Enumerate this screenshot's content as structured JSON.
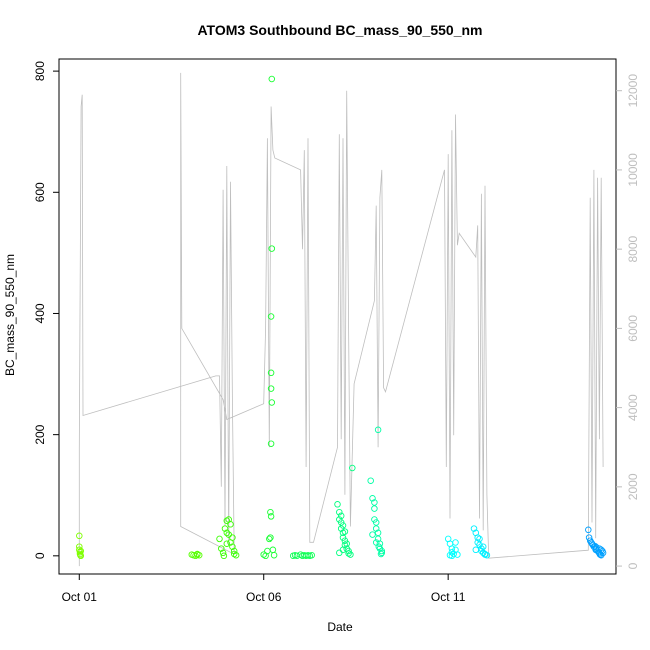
{
  "chart_data": {
    "type": "scatter",
    "title": "ATOM3 Southbound BC_mass_90_550_nm",
    "xlabel": "Date",
    "ylabel": "BC_mass_90_550_nm",
    "x_ticks": [
      "Oct 01",
      "Oct 06",
      "Oct 11"
    ],
    "x_tick_days": [
      1,
      6,
      11
    ],
    "xlim_days": [
      0.45,
      15.55
    ],
    "ylim": [
      -30,
      820
    ],
    "y_ticks": [
      0,
      200,
      400,
      600,
      800
    ],
    "y2lim": [
      -200,
      12800
    ],
    "y2_ticks": [
      0,
      2000,
      4000,
      6000,
      8000,
      10000,
      12000
    ],
    "y2_series_color": "#bebebe",
    "grid": false,
    "legend": "none",
    "series": [
      {
        "color": "#7fff00",
        "points": [
          [
            1.0,
            33
          ],
          [
            1.0,
            15
          ],
          [
            1.0,
            10
          ],
          [
            1.02,
            6
          ],
          [
            1.02,
            3
          ],
          [
            1.03,
            1
          ],
          [
            1.04,
            8
          ],
          [
            1.04,
            0
          ]
        ]
      },
      {
        "color": "#55ff00",
        "points": [
          [
            4.05,
            2
          ],
          [
            4.1,
            1
          ],
          [
            4.15,
            0
          ],
          [
            4.2,
            3
          ],
          [
            4.25,
            1
          ],
          [
            4.2,
            2
          ]
        ]
      },
      {
        "color": "#3cff05",
        "points": [
          [
            4.8,
            28
          ],
          [
            4.85,
            12
          ],
          [
            4.9,
            5
          ],
          [
            4.95,
            45
          ],
          [
            5.0,
            38
          ],
          [
            5.0,
            58
          ],
          [
            5.05,
            60
          ],
          [
            5.1,
            52
          ],
          [
            5.1,
            22
          ],
          [
            5.15,
            15
          ],
          [
            5.15,
            30
          ],
          [
            5.2,
            8
          ],
          [
            5.2,
            3
          ],
          [
            5.25,
            1
          ],
          [
            5.05,
            35
          ],
          [
            5.0,
            20
          ],
          [
            4.92,
            0
          ]
        ]
      },
      {
        "color": "#1aff33",
        "points": [
          [
            6.0,
            2
          ],
          [
            6.05,
            0
          ],
          [
            6.1,
            8
          ],
          [
            6.15,
            28
          ],
          [
            6.18,
            30
          ],
          [
            6.18,
            72
          ],
          [
            6.2,
            65
          ],
          [
            6.2,
            185
          ],
          [
            6.22,
            253
          ],
          [
            6.2,
            276
          ],
          [
            6.2,
            302
          ],
          [
            6.2,
            395
          ],
          [
            6.22,
            507
          ],
          [
            6.22,
            787
          ],
          [
            6.25,
            10
          ],
          [
            6.28,
            1
          ]
        ]
      },
      {
        "color": "#0fff55",
        "points": [
          [
            6.8,
            0
          ],
          [
            6.85,
            1
          ],
          [
            6.9,
            0
          ],
          [
            7.0,
            2
          ],
          [
            7.05,
            0
          ],
          [
            7.1,
            1
          ],
          [
            7.15,
            0
          ],
          [
            7.2,
            1
          ],
          [
            7.25,
            0
          ],
          [
            7.3,
            1
          ]
        ]
      },
      {
        "color": "#00ff7f",
        "points": [
          [
            8.0,
            85
          ],
          [
            8.05,
            72
          ],
          [
            8.05,
            60
          ],
          [
            8.1,
            55
          ],
          [
            8.1,
            45
          ],
          [
            8.15,
            38
          ],
          [
            8.15,
            30
          ],
          [
            8.2,
            25
          ],
          [
            8.2,
            18
          ],
          [
            8.25,
            12
          ],
          [
            8.3,
            8
          ],
          [
            8.3,
            4
          ],
          [
            8.35,
            2
          ],
          [
            8.1,
            66
          ],
          [
            8.15,
            50
          ],
          [
            8.2,
            40
          ],
          [
            8.25,
            20
          ],
          [
            8.15,
            10
          ],
          [
            8.05,
            5
          ],
          [
            8.4,
            145
          ]
        ]
      },
      {
        "color": "#00ffa6",
        "points": [
          [
            8.9,
            124
          ],
          [
            8.95,
            95
          ],
          [
            9.0,
            88
          ],
          [
            9.0,
            78
          ],
          [
            9.05,
            55
          ],
          [
            9.05,
            45
          ],
          [
            9.1,
            38
          ],
          [
            9.1,
            28
          ],
          [
            9.15,
            20
          ],
          [
            9.15,
            12
          ],
          [
            9.2,
            8
          ],
          [
            9.2,
            5
          ],
          [
            9.1,
            208
          ],
          [
            9.0,
            60
          ],
          [
            8.95,
            35
          ],
          [
            9.05,
            22
          ],
          [
            9.12,
            15
          ],
          [
            9.18,
            3
          ]
        ]
      },
      {
        "color": "#00ffff",
        "points": [
          [
            11.0,
            28
          ],
          [
            11.05,
            20
          ],
          [
            11.1,
            12
          ],
          [
            11.1,
            6
          ],
          [
            11.15,
            3
          ],
          [
            11.2,
            22
          ],
          [
            11.2,
            10
          ],
          [
            11.25,
            2
          ],
          [
            11.05,
            1
          ],
          [
            11.1,
            0
          ]
        ]
      },
      {
        "color": "#00f0ff",
        "points": [
          [
            11.7,
            45
          ],
          [
            11.75,
            38
          ],
          [
            11.8,
            30
          ],
          [
            11.8,
            22
          ],
          [
            11.85,
            18
          ],
          [
            11.9,
            12
          ],
          [
            11.9,
            8
          ],
          [
            11.95,
            5
          ],
          [
            12.0,
            3
          ],
          [
            12.0,
            2
          ],
          [
            11.85,
            28
          ],
          [
            11.95,
            15
          ],
          [
            12.05,
            1
          ],
          [
            11.75,
            10
          ]
        ]
      },
      {
        "color": "#00a0ff",
        "points": [
          [
            14.8,
            43
          ],
          [
            14.82,
            30
          ],
          [
            14.85,
            25
          ],
          [
            14.9,
            20
          ],
          [
            14.92,
            18
          ],
          [
            14.95,
            15
          ],
          [
            15.0,
            12
          ],
          [
            15.0,
            10
          ],
          [
            15.05,
            8
          ],
          [
            15.08,
            6
          ],
          [
            15.1,
            4
          ],
          [
            15.12,
            2
          ],
          [
            15.15,
            1
          ],
          [
            14.88,
            22
          ],
          [
            14.98,
            16
          ],
          [
            15.02,
            14
          ],
          [
            15.1,
            12
          ],
          [
            15.15,
            10
          ],
          [
            15.18,
            8
          ],
          [
            15.2,
            5
          ]
        ]
      }
    ],
    "y2_series": [
      [
        1.0,
        0
      ],
      [
        1.0,
        3000
      ],
      [
        1.05,
        11600
      ],
      [
        1.08,
        11900
      ],
      [
        1.1,
        3800
      ],
      [
        4.7,
        4800
      ],
      [
        4.8,
        4800
      ],
      [
        4.85,
        2000
      ],
      [
        4.9,
        9500
      ],
      [
        4.95,
        1000
      ],
      [
        5.0,
        10100
      ],
      [
        5.05,
        500
      ],
      [
        5.1,
        9700
      ],
      [
        5.15,
        4200
      ],
      [
        5.2,
        300
      ],
      [
        3.75,
        1000
      ],
      [
        3.75,
        12450
      ],
      [
        3.78,
        6000
      ],
      [
        4.9,
        4200
      ],
      [
        5.0,
        3700
      ],
      [
        6.0,
        4100
      ],
      [
        6.05,
        6000
      ],
      [
        6.1,
        10800
      ],
      [
        6.15,
        3000
      ],
      [
        6.2,
        11600
      ],
      [
        6.25,
        10500
      ],
      [
        6.3,
        10300
      ],
      [
        7.0,
        10000
      ],
      [
        7.05,
        8000
      ],
      [
        7.1,
        10500
      ],
      [
        7.15,
        2500
      ],
      [
        7.2,
        10800
      ],
      [
        7.25,
        600
      ],
      [
        7.35,
        600
      ],
      [
        8.0,
        3000
      ],
      [
        8.05,
        10900
      ],
      [
        8.1,
        3200
      ],
      [
        8.15,
        10800
      ],
      [
        8.2,
        1800
      ],
      [
        8.25,
        12000
      ],
      [
        8.3,
        6000
      ],
      [
        8.35,
        1000
      ],
      [
        8.45,
        4600
      ],
      [
        9.0,
        6700
      ],
      [
        9.05,
        9100
      ],
      [
        9.1,
        3000
      ],
      [
        9.15,
        9300
      ],
      [
        9.2,
        10000
      ],
      [
        9.25,
        4500
      ],
      [
        9.3,
        4400
      ],
      [
        10.9,
        10000
      ],
      [
        10.95,
        2500
      ],
      [
        11.0,
        10400
      ],
      [
        11.05,
        1200
      ],
      [
        11.1,
        11000
      ],
      [
        11.15,
        3300
      ],
      [
        11.2,
        11400
      ],
      [
        11.25,
        8100
      ],
      [
        11.3,
        8400
      ],
      [
        11.75,
        7800
      ],
      [
        11.8,
        8600
      ],
      [
        11.85,
        1200
      ],
      [
        11.9,
        9400
      ],
      [
        11.95,
        900
      ],
      [
        12.0,
        9600
      ],
      [
        12.05,
        1800
      ],
      [
        12.1,
        200
      ],
      [
        14.8,
        400
      ],
      [
        14.85,
        9300
      ],
      [
        14.9,
        1100
      ],
      [
        14.95,
        10000
      ],
      [
        15.0,
        700
      ],
      [
        15.05,
        9800
      ],
      [
        15.1,
        3200
      ],
      [
        15.15,
        9800
      ],
      [
        15.2,
        2500
      ]
    ]
  }
}
